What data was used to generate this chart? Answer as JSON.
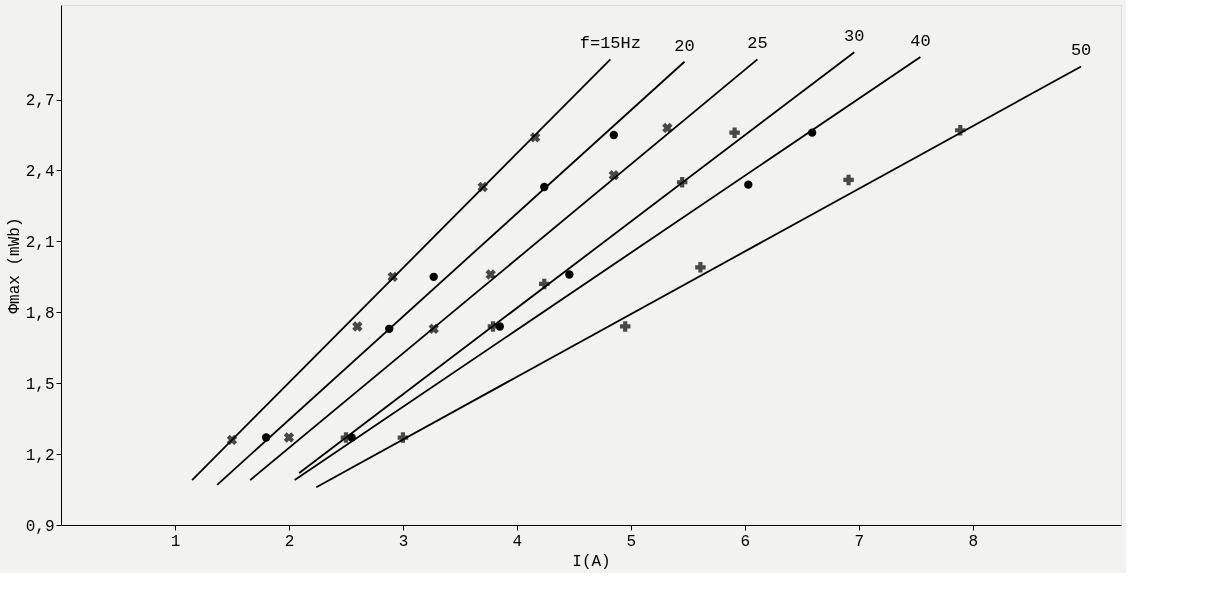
{
  "chart_data": {
    "type": "line",
    "xlabel": "I(A)",
    "ylabel": "Φmax (mWb)",
    "xlim": [
      0,
      9.3
    ],
    "ylim": [
      0.9,
      3.1
    ],
    "xticks": [
      1,
      2,
      3,
      4,
      5,
      6,
      7,
      8
    ],
    "yticks": [
      {
        "value": 0.9,
        "label": "0,9"
      },
      {
        "value": 1.2,
        "label": "1,2"
      },
      {
        "value": 1.5,
        "label": "1,5"
      },
      {
        "value": 1.8,
        "label": "1,8"
      },
      {
        "value": 2.1,
        "label": "2,1"
      },
      {
        "value": 2.4,
        "label": "2,4"
      },
      {
        "value": 2.7,
        "label": "2,7"
      }
    ],
    "grid": false,
    "legend": false,
    "series": [
      {
        "type": "line",
        "name": "f=15Hz",
        "color": "#000000",
        "x": [
          1.15,
          4.82
        ],
        "values": [
          1.09,
          2.87
        ]
      },
      {
        "type": "line",
        "name": "20",
        "color": "#000000",
        "x": [
          1.37,
          5.47
        ],
        "values": [
          1.07,
          2.86
        ]
      },
      {
        "type": "line",
        "name": "25",
        "color": "#000000",
        "x": [
          1.66,
          6.11
        ],
        "values": [
          1.09,
          2.87
        ]
      },
      {
        "type": "line",
        "name": "30",
        "color": "#000000",
        "x": [
          2.09,
          6.96
        ],
        "values": [
          1.12,
          2.9
        ]
      },
      {
        "type": "line",
        "name": "40",
        "color": "#000000",
        "x": [
          2.05,
          7.54
        ],
        "values": [
          1.09,
          2.88
        ]
      },
      {
        "type": "line",
        "name": "50",
        "color": "#000000",
        "x": [
          2.24,
          8.95
        ],
        "values": [
          1.06,
          2.84
        ]
      },
      {
        "type": "scatter",
        "marker": "cross",
        "color": "#000000",
        "x": [
          1.5,
          2.6,
          2.91,
          3.7,
          4.16
        ],
        "values": [
          1.26,
          1.74,
          1.95,
          2.33,
          2.54
        ]
      },
      {
        "type": "scatter",
        "marker": "circle",
        "color": "#000000",
        "x": [
          1.8,
          2.88,
          3.27,
          4.24,
          4.85
        ],
        "values": [
          1.27,
          1.73,
          1.95,
          2.33,
          2.55
        ]
      },
      {
        "type": "scatter",
        "marker": "cross",
        "color": "#000000",
        "x": [
          2.0,
          3.27,
          3.77,
          4.85,
          5.32
        ],
        "values": [
          1.27,
          1.73,
          1.96,
          2.38,
          2.58
        ]
      },
      {
        "type": "scatter",
        "marker": "cross",
        "color": "#000000",
        "x": [
          2.5,
          3.79,
          4.24,
          5.45,
          5.91
        ],
        "values": [
          1.27,
          1.74,
          1.92,
          2.35,
          2.56
        ]
      },
      {
        "type": "scatter",
        "marker": "circle",
        "color": "#000000",
        "x": [
          2.55,
          3.85,
          4.46,
          6.03,
          6.59
        ],
        "values": [
          1.27,
          1.74,
          1.96,
          2.34,
          2.56
        ]
      },
      {
        "type": "scatter",
        "marker": "cross",
        "color": "#000000",
        "x": [
          3.0,
          4.95,
          5.61,
          6.91,
          7.89
        ],
        "values": [
          1.27,
          1.74,
          1.99,
          2.36,
          2.57
        ]
      }
    ]
  }
}
